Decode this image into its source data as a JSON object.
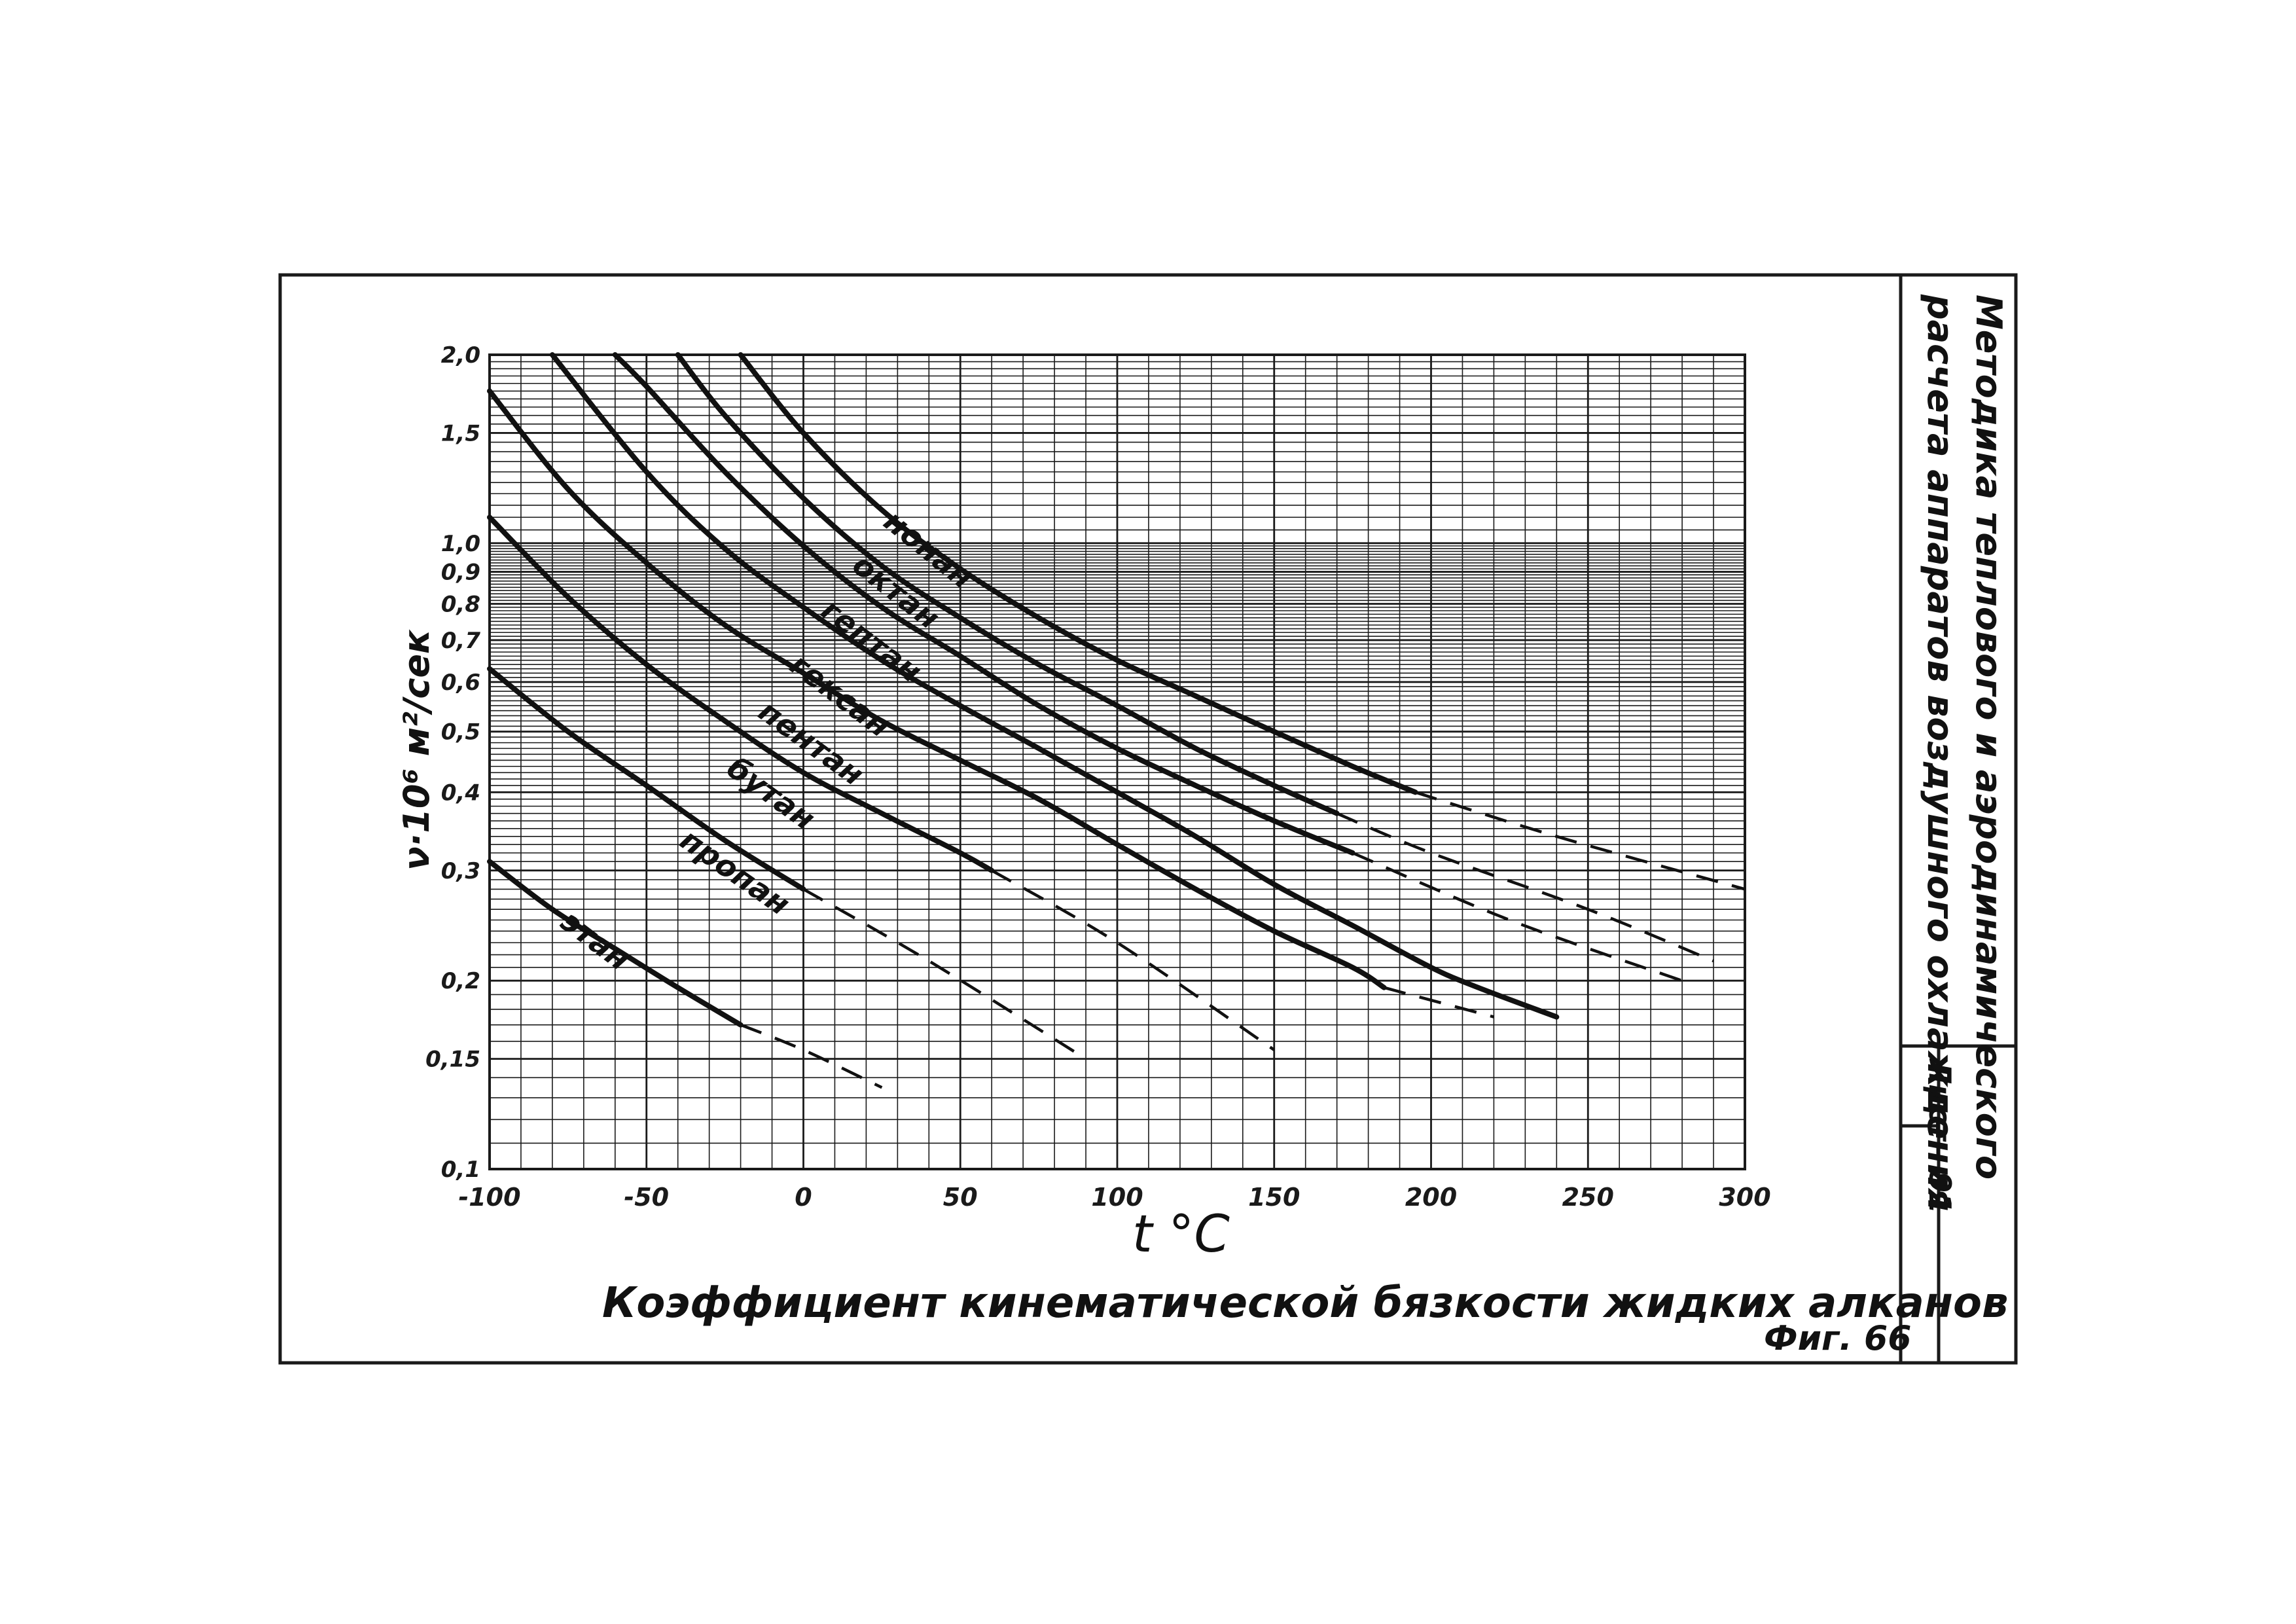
{
  "chart_data": {
    "type": "line",
    "title": "Коэффициент кинематической бязкости жидких алканов",
    "xlabel": "t °C",
    "ylabel": "ν·10⁶  м²/сек",
    "xlim": [
      -100,
      300
    ],
    "ylim": [
      0.1,
      2.0
    ],
    "yscale": "log",
    "grid": true,
    "x_ticks": [
      {
        "value": -100,
        "label": "-100"
      },
      {
        "value": -50,
        "label": "-50"
      },
      {
        "value": 0,
        "label": "0"
      },
      {
        "value": 50,
        "label": "50"
      },
      {
        "value": 100,
        "label": "100"
      },
      {
        "value": 150,
        "label": "150"
      },
      {
        "value": 200,
        "label": "200"
      },
      {
        "value": 250,
        "label": "250"
      },
      {
        "value": 300,
        "label": "300"
      }
    ],
    "y_ticks": [
      {
        "value": 0.1,
        "label": "0,1"
      },
      {
        "value": 0.15,
        "label": "0,15"
      },
      {
        "value": 0.2,
        "label": "0,2"
      },
      {
        "value": 0.3,
        "label": "0,3"
      },
      {
        "value": 0.4,
        "label": "0,4"
      },
      {
        "value": 0.5,
        "label": "0,5"
      },
      {
        "value": 0.6,
        "label": "0,6"
      },
      {
        "value": 0.7,
        "label": "0,7"
      },
      {
        "value": 0.8,
        "label": "0,8"
      },
      {
        "value": 0.9,
        "label": "0,9"
      },
      {
        "value": 1.0,
        "label": "1,0"
      },
      {
        "value": 1.5,
        "label": "1,5"
      },
      {
        "value": 2.0,
        "label": "2,0"
      }
    ],
    "series": [
      {
        "name": "этан",
        "solid": [
          [
            -100,
            0.31
          ],
          [
            -80,
            0.26
          ],
          [
            -60,
            0.225
          ],
          [
            -40,
            0.195
          ],
          [
            -20,
            0.17
          ]
        ],
        "dashed": [
          [
            -20,
            0.17
          ],
          [
            0,
            0.155
          ],
          [
            25,
            0.135
          ]
        ]
      },
      {
        "name": "пропан",
        "solid": [
          [
            -100,
            0.63
          ],
          [
            -75,
            0.5
          ],
          [
            -50,
            0.41
          ],
          [
            -25,
            0.335
          ],
          [
            0,
            0.28
          ]
        ],
        "dashed": [
          [
            0,
            0.28
          ],
          [
            40,
            0.215
          ],
          [
            90,
            0.15
          ]
        ]
      },
      {
        "name": "бутан",
        "solid": [
          [
            -100,
            1.1
          ],
          [
            -75,
            0.82
          ],
          [
            -50,
            0.64
          ],
          [
            -25,
            0.52
          ],
          [
            0,
            0.43
          ],
          [
            25,
            0.37
          ],
          [
            50,
            0.32
          ],
          [
            60,
            0.3
          ]
        ],
        "dashed": [
          [
            60,
            0.3
          ],
          [
            100,
            0.23
          ],
          [
            150,
            0.155
          ]
        ]
      },
      {
        "name": "пентан",
        "solid": [
          [
            -100,
            1.75
          ],
          [
            -75,
            1.22
          ],
          [
            -50,
            0.93
          ],
          [
            -25,
            0.74
          ],
          [
            0,
            0.62
          ],
          [
            25,
            0.52
          ],
          [
            50,
            0.45
          ],
          [
            75,
            0.39
          ],
          [
            100,
            0.33
          ],
          [
            125,
            0.28
          ],
          [
            150,
            0.24
          ],
          [
            175,
            0.21
          ],
          [
            185,
            0.195
          ]
        ],
        "dashed": [
          [
            185,
            0.195
          ],
          [
            220,
            0.175
          ]
        ]
      },
      {
        "name": "гексан",
        "solid": [
          [
            -80,
            2.0
          ],
          [
            -50,
            1.3
          ],
          [
            -25,
            0.98
          ],
          [
            0,
            0.79
          ],
          [
            25,
            0.65
          ],
          [
            50,
            0.55
          ],
          [
            75,
            0.47
          ],
          [
            100,
            0.4
          ],
          [
            125,
            0.34
          ],
          [
            150,
            0.285
          ],
          [
            175,
            0.245
          ],
          [
            200,
            0.21
          ],
          [
            215,
            0.195
          ],
          [
            240,
            0.175
          ]
        ],
        "dashed": []
      },
      {
        "name": "гептан",
        "solid": [
          [
            -60,
            2.0
          ],
          [
            -50,
            1.78
          ],
          [
            -25,
            1.3
          ],
          [
            0,
            0.99
          ],
          [
            25,
            0.79
          ],
          [
            50,
            0.66
          ],
          [
            75,
            0.55
          ],
          [
            100,
            0.47
          ],
          [
            125,
            0.41
          ],
          [
            150,
            0.36
          ],
          [
            175,
            0.32
          ]
        ],
        "dashed": [
          [
            175,
            0.32
          ],
          [
            225,
            0.25
          ],
          [
            280,
            0.2
          ]
        ]
      },
      {
        "name": "октан",
        "solid": [
          [
            -40,
            2.0
          ],
          [
            -25,
            1.6
          ],
          [
            0,
            1.18
          ],
          [
            25,
            0.92
          ],
          [
            50,
            0.76
          ],
          [
            75,
            0.64
          ],
          [
            100,
            0.55
          ],
          [
            125,
            0.47
          ],
          [
            150,
            0.41
          ],
          [
            170,
            0.37
          ]
        ],
        "dashed": [
          [
            170,
            0.37
          ],
          [
            200,
            0.32
          ],
          [
            250,
            0.26
          ],
          [
            290,
            0.215
          ]
        ]
      },
      {
        "name": "нонан",
        "solid": [
          [
            -20,
            2.0
          ],
          [
            0,
            1.5
          ],
          [
            25,
            1.13
          ],
          [
            50,
            0.91
          ],
          [
            75,
            0.76
          ],
          [
            100,
            0.65
          ],
          [
            125,
            0.57
          ],
          [
            150,
            0.5
          ],
          [
            175,
            0.44
          ],
          [
            195,
            0.4
          ]
        ],
        "dashed": [
          [
            195,
            0.4
          ],
          [
            240,
            0.34
          ],
          [
            300,
            0.28
          ]
        ]
      }
    ]
  },
  "title_block": {
    "line1": "Методика теплового и аэродинамического",
    "line2": "расчета аппаратов воздушного охлаждения",
    "sheet_label": "Лист",
    "sheet_number": "91"
  },
  "figure_label": "Фиг. 66"
}
